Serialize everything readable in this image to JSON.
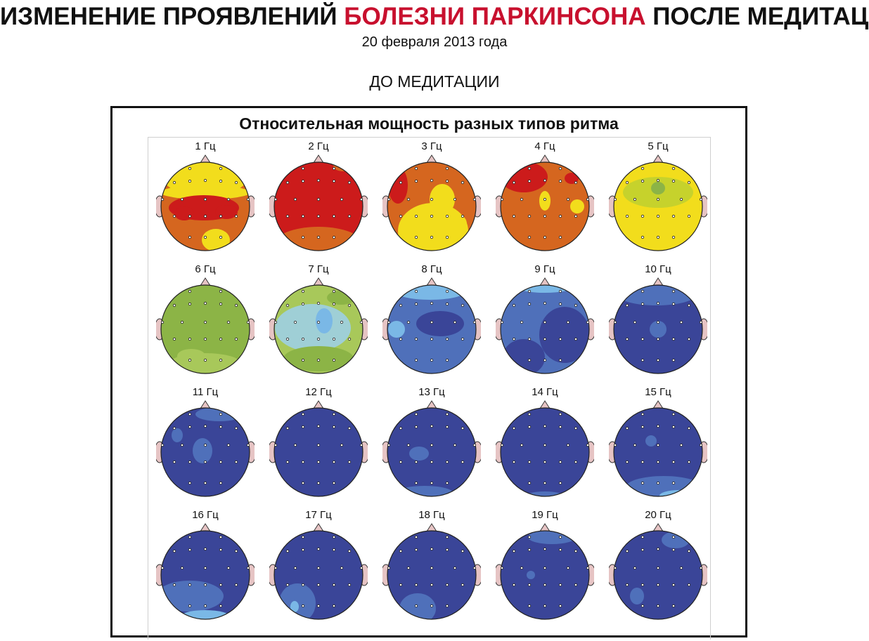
{
  "header": {
    "title_part1": "ИЗМЕНЕНИЕ ПРОЯВЛЕНИЙ ",
    "title_highlight": "БОЛЕЗНИ ПАРКИНСОНА",
    "title_part2": " ПОСЛЕ МЕДИТАЦИИ",
    "date": "20 февраля 2013 года",
    "section": "ДО МЕДИТАЦИИ"
  },
  "panel": {
    "title": "Относительная мощность разных типов ритма"
  },
  "colors": {
    "red": "#cc1b1b",
    "orange": "#d5661f",
    "yellow": "#f2dd1c",
    "lime": "#c6d22c",
    "green": "#8cb446",
    "lightgreen": "#a8c85a",
    "cyan": "#9fcfd6",
    "lightblue": "#7ab8e6",
    "midblue": "#4f70ba",
    "darkblue": "#3a4598",
    "ear": "#e6c4c4"
  },
  "maps": [
    {
      "label": "1 Гц",
      "base": "orange",
      "blobs": [
        [
          "yellow",
          70,
          30,
          60,
          24
        ],
        [
          "yellow",
          70,
          50,
          64,
          10
        ],
        [
          "red",
          68,
          72,
          50,
          18
        ],
        [
          "red",
          40,
          80,
          14,
          10
        ],
        [
          "red",
          100,
          78,
          16,
          10
        ],
        [
          "yellow",
          85,
          118,
          20,
          16
        ]
      ]
    },
    {
      "label": "2 Гц",
      "base": "red",
      "blobs": [
        [
          "orange",
          70,
          125,
          64,
          26
        ],
        [
          "orange",
          105,
          12,
          14,
          8
        ]
      ]
    },
    {
      "label": "3 Гц",
      "base": "orange",
      "blobs": [
        [
          "yellow",
          72,
          105,
          50,
          40
        ],
        [
          "yellow",
          85,
          60,
          18,
          22
        ],
        [
          "red",
          22,
          40,
          14,
          26
        ],
        [
          "yellow",
          60,
          135,
          40,
          14
        ],
        [
          "yellow",
          110,
          95,
          10,
          12
        ]
      ]
    },
    {
      "label": "4 Гц",
      "base": "orange",
      "blobs": [
        [
          "red",
          40,
          28,
          34,
          22
        ],
        [
          "yellow",
          70,
          62,
          8,
          14
        ],
        [
          "red",
          108,
          30,
          10,
          8
        ],
        [
          "yellow",
          116,
          70,
          10,
          10
        ]
      ]
    },
    {
      "label": "5 Гц",
      "base": "yellow",
      "blobs": [
        [
          "lime",
          70,
          50,
          50,
          22
        ],
        [
          "green",
          70,
          44,
          10,
          9
        ]
      ]
    },
    {
      "label": "6 Гц",
      "base": "green",
      "blobs": [
        [
          "lightgreen",
          70,
          118,
          50,
          14
        ],
        [
          "lightgreen",
          50,
          108,
          20,
          10
        ]
      ]
    },
    {
      "label": "7 Гц",
      "base": "lightgreen",
      "blobs": [
        [
          "cyan",
          62,
          68,
          54,
          34
        ],
        [
          "lightblue",
          78,
          58,
          12,
          18
        ],
        [
          "green",
          70,
          112,
          50,
          18
        ],
        [
          "green",
          102,
          25,
          20,
          10
        ]
      ]
    },
    {
      "label": "8 Гц",
      "base": "midblue",
      "blobs": [
        [
          "lightblue",
          68,
          16,
          50,
          12
        ],
        [
          "darkblue",
          82,
          62,
          34,
          18
        ],
        [
          "lightblue",
          20,
          70,
          12,
          12
        ]
      ]
    },
    {
      "label": "9 Гц",
      "base": "midblue",
      "blobs": [
        [
          "lightblue",
          70,
          10,
          40,
          8
        ],
        [
          "darkblue",
          98,
          78,
          36,
          40
        ],
        [
          "darkblue",
          40,
          110,
          30,
          26
        ]
      ]
    },
    {
      "label": "10 Гц",
      "base": "darkblue",
      "blobs": [
        [
          "midblue",
          68,
          22,
          54,
          14
        ],
        [
          "midblue",
          70,
          70,
          12,
          12
        ]
      ]
    },
    {
      "label": "11 Гц",
      "base": "darkblue",
      "blobs": [
        [
          "midblue",
          90,
          16,
          34,
          10
        ],
        [
          "midblue",
          66,
          68,
          14,
          18
        ],
        [
          "midblue",
          30,
          46,
          8,
          10
        ]
      ]
    },
    {
      "label": "12 Гц",
      "base": "darkblue",
      "blobs": []
    },
    {
      "label": "13 Гц",
      "base": "darkblue",
      "blobs": [
        [
          "midblue",
          52,
          72,
          14,
          10
        ],
        [
          "midblue",
          60,
          128,
          40,
          10
        ]
      ]
    },
    {
      "label": "14 Гц",
      "base": "darkblue",
      "blobs": [
        [
          "midblue",
          70,
          134,
          30,
          8
        ]
      ]
    },
    {
      "label": "15 Гц",
      "base": "darkblue",
      "blobs": [
        [
          "midblue",
          78,
          120,
          54,
          16
        ],
        [
          "lightblue",
          100,
          132,
          28,
          8
        ],
        [
          "midblue",
          60,
          54,
          8,
          8
        ]
      ]
    },
    {
      "label": "16 Гц",
      "base": "darkblue",
      "blobs": [
        [
          "midblue",
          48,
          100,
          48,
          22
        ],
        [
          "lightblue",
          70,
          130,
          36,
          10
        ]
      ]
    },
    {
      "label": "17 Гц",
      "base": "darkblue",
      "blobs": [
        [
          "midblue",
          40,
          110,
          26,
          28
        ],
        [
          "lightblue",
          36,
          115,
          6,
          8
        ]
      ]
    },
    {
      "label": "18 Гц",
      "base": "darkblue",
      "blobs": [
        [
          "midblue",
          50,
          118,
          26,
          22
        ]
      ]
    },
    {
      "label": "19 Гц",
      "base": "darkblue",
      "blobs": [
        [
          "midblue",
          80,
          16,
          34,
          10
        ],
        [
          "midblue",
          50,
          70,
          6,
          6
        ]
      ]
    },
    {
      "label": "20 Гц",
      "base": "darkblue",
      "blobs": [
        [
          "midblue",
          95,
          20,
          20,
          12
        ],
        [
          "midblue",
          40,
          100,
          10,
          12
        ]
      ]
    }
  ]
}
